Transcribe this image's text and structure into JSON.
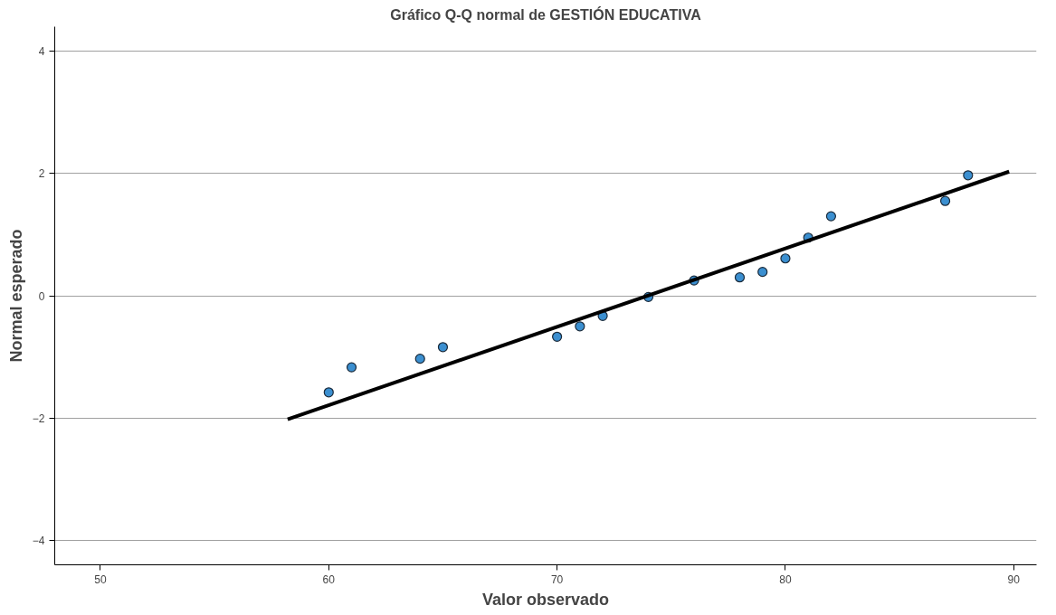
{
  "chart_data": {
    "type": "scatter",
    "title": "Gráfico Q-Q normal de GESTIÓN EDUCATIVA",
    "xlabel": "Valor observado",
    "ylabel": "Normal esperado",
    "series": [
      {
        "color": "#3b8fd0",
        "marker": "circle",
        "x": [
          60,
          61,
          64,
          65,
          70,
          71,
          72,
          74,
          76,
          78,
          79,
          80,
          81,
          82,
          87,
          88
        ],
        "values": [
          -1.58,
          -1.17,
          -1.03,
          -0.84,
          -0.67,
          -0.5,
          -0.33,
          -0.02,
          0.25,
          0.3,
          0.39,
          0.61,
          0.95,
          1.3,
          1.55,
          1.97
        ]
      },
      {
        "type": "line",
        "color": "#000000",
        "marker": "none",
        "x": [
          58.2,
          89.8
        ],
        "values": [
          -2.02,
          2.03
        ]
      }
    ],
    "xlim": [
      48,
      91
    ],
    "xticks": [
      50,
      60,
      70,
      80,
      90
    ],
    "ylim": [
      -4.4,
      4.4
    ],
    "yticks": [
      -4,
      -2,
      0,
      2,
      4
    ],
    "grid": "y"
  }
}
